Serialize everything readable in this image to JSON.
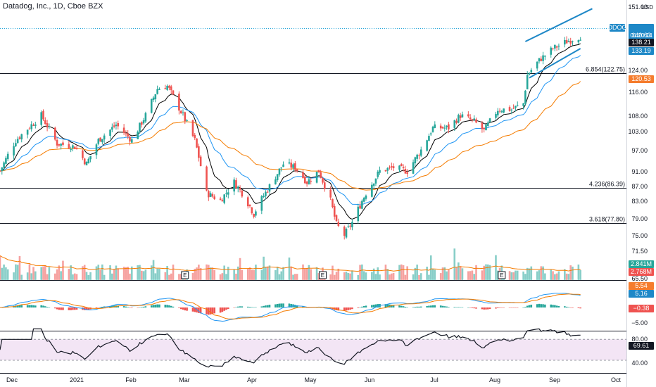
{
  "header": {
    "title": "Datadog, Inc., 1D, Cboe BZX",
    "currency": "USD"
  },
  "colors": {
    "up": "#26a69a",
    "down": "#ef5350",
    "ema_fast": "#000000",
    "ema_mid": "#2196f3",
    "ema_slow": "#f57c00",
    "rsi_bg": "#f3e5f5",
    "tag_blue": "#1e88c7",
    "tag_orange": "#f57c2d",
    "tag_red": "#ef5350",
    "tag_dark": "#131722"
  },
  "price_axis": {
    "ticks": [
      "151.00",
      "124.00",
      "116.00",
      "108.00",
      "103.00",
      "97.00",
      "91.00",
      "87.00",
      "83.00",
      "79.00",
      "75.00",
      "71.50",
      "65.50"
    ],
    "tags": [
      {
        "symbol": "DDOG",
        "value": "140.63",
        "time": "01:20:14",
        "color": "tag_blue"
      },
      {
        "value": "138.21",
        "color": "tag_dark"
      },
      {
        "value": "133.19",
        "color": "tag_blue"
      },
      {
        "value": "120.53",
        "color": "tag_orange"
      }
    ]
  },
  "fib_levels": [
    {
      "label": "6.854(122.75)",
      "value": 122.75
    },
    {
      "label": "4.236(86.39)",
      "value": 86.39
    },
    {
      "label": "3.618(77.80)",
      "value": 77.8
    }
  ],
  "volume_tags": [
    {
      "value": "2.841M",
      "color": "up"
    },
    {
      "value": "2.768M",
      "color": "down"
    }
  ],
  "macd_axis": {
    "tags": [
      {
        "value": "5.54",
        "color": "tag_orange"
      },
      {
        "value": "5.16",
        "color": "tag_blue"
      },
      {
        "value": "−0.38",
        "color": "tag_red"
      }
    ],
    "ticks": [
      "−5.00"
    ]
  },
  "rsi_axis": {
    "ticks": [
      "80.00",
      "40.00"
    ],
    "tag": {
      "value": "69.61",
      "color": "tag_dark"
    }
  },
  "chart_data": {
    "type": "candlestick",
    "title": "Datadog, Inc., 1D, Cboe BZX",
    "x_tick_labels": [
      "Dec",
      "2021",
      "Feb",
      "Mar",
      "Apr",
      "May",
      "Jun",
      "Jul",
      "Aug",
      "Sep",
      "Oct"
    ],
    "close_path": [
      [
        "2020-11-23",
        91
      ],
      [
        "2020-12-01",
        100
      ],
      [
        "2020-12-14",
        108
      ],
      [
        "2020-12-22",
        99
      ],
      [
        "2020-12-31",
        98
      ],
      [
        "2021-01-06",
        93
      ],
      [
        "2021-01-12",
        100
      ],
      [
        "2021-01-21",
        105
      ],
      [
        "2021-01-29",
        100
      ],
      [
        "2021-02-05",
        108
      ],
      [
        "2021-02-11",
        117
      ],
      [
        "2021-02-16",
        118
      ],
      [
        "2021-02-24",
        108
      ],
      [
        "2021-03-02",
        100
      ],
      [
        "2021-03-08",
        85
      ],
      [
        "2021-03-15",
        83
      ],
      [
        "2021-03-22",
        88
      ],
      [
        "2021-03-26",
        85
      ],
      [
        "2021-04-01",
        80
      ],
      [
        "2021-04-08",
        86
      ],
      [
        "2021-04-16",
        93
      ],
      [
        "2021-04-22",
        92
      ],
      [
        "2021-04-28",
        88
      ],
      [
        "2021-05-04",
        91
      ],
      [
        "2021-05-10",
        83
      ],
      [
        "2021-05-13",
        77.5
      ],
      [
        "2021-05-17",
        75
      ],
      [
        "2021-05-21",
        78
      ],
      [
        "2021-05-28",
        85
      ],
      [
        "2021-06-04",
        91
      ],
      [
        "2021-06-11",
        92
      ],
      [
        "2021-06-18",
        91
      ],
      [
        "2021-06-25",
        97
      ],
      [
        "2021-07-01",
        104
      ],
      [
        "2021-07-09",
        104
      ],
      [
        "2021-07-15",
        108
      ],
      [
        "2021-07-22",
        106
      ],
      [
        "2021-07-27",
        103
      ],
      [
        "2021-08-03",
        110
      ],
      [
        "2021-08-10",
        110
      ],
      [
        "2021-08-16",
        112
      ],
      [
        "2021-08-18",
        122
      ],
      [
        "2021-08-24",
        128
      ],
      [
        "2021-08-31",
        133
      ],
      [
        "2021-09-07",
        136
      ],
      [
        "2021-09-14",
        138.21
      ]
    ],
    "rising_wedge": {
      "upper": [
        [
          "2021-08-17",
          136
        ],
        [
          "2021-09-20",
          150
        ]
      ],
      "lower": [
        [
          "2021-08-19",
          121
        ],
        [
          "2021-09-14",
          133
        ]
      ]
    },
    "macd_range": [
      -8,
      8
    ],
    "rsi_bands": [
      30,
      70
    ],
    "rsi_last": 69.61
  }
}
